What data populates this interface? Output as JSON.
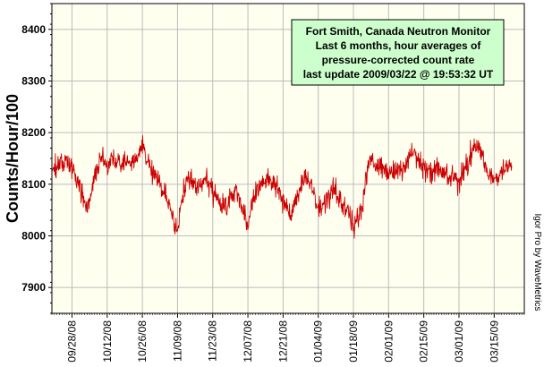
{
  "chart_data": {
    "type": "line",
    "title_lines": [
      "Fort Smith, Canada Neutron Monitor",
      "Last 6 months, hour averages of",
      "pressure-corrected count rate",
      "last update 2009/03/22 @ 19:53:32 UT"
    ],
    "ylabel": "Counts/Hour/100",
    "xlabel": "",
    "credit": "Igor Pro by WaveMetrics",
    "ylim": [
      7850,
      8450
    ],
    "yticks": [
      7900,
      8000,
      8100,
      8200,
      8300,
      8400
    ],
    "xlim": [
      "2008-09-20",
      "2009-03-27"
    ],
    "xticks": [
      {
        "label": "09/28/08",
        "date": "2008-09-28"
      },
      {
        "label": "10/12/08",
        "date": "2008-10-12"
      },
      {
        "label": "10/26/08",
        "date": "2008-10-26"
      },
      {
        "label": "11/09/08",
        "date": "2008-11-09"
      },
      {
        "label": "11/23/08",
        "date": "2008-11-23"
      },
      {
        "label": "12/07/08",
        "date": "2008-12-07"
      },
      {
        "label": "12/21/08",
        "date": "2008-12-21"
      },
      {
        "label": "01/04/09",
        "date": "2009-01-04"
      },
      {
        "label": "01/18/09",
        "date": "2009-01-18"
      },
      {
        "label": "02/01/09",
        "date": "2009-02-01"
      },
      {
        "label": "02/15/09",
        "date": "2009-02-15"
      },
      {
        "label": "03/01/09",
        "date": "2009-03-01"
      },
      {
        "label": "03/15/09",
        "date": "2009-03-15"
      }
    ],
    "grid": true,
    "legend_position": "top-right",
    "colors": {
      "series": "#cc0000",
      "plot_background": "#fffff0",
      "legend_background": "#ccffcc",
      "grid": "#bbbbbb"
    },
    "series": [
      {
        "noise": 32,
        "points": [
          [
            "2008-09-20",
            8135
          ],
          [
            "2008-09-23",
            8140
          ],
          [
            "2008-09-26",
            8145
          ],
          [
            "2008-09-29",
            8120
          ],
          [
            "2008-10-02",
            8085
          ],
          [
            "2008-10-04",
            8055
          ],
          [
            "2008-10-06",
            8095
          ],
          [
            "2008-10-08",
            8130
          ],
          [
            "2008-10-10",
            8150
          ],
          [
            "2008-10-12",
            8130
          ],
          [
            "2008-10-14",
            8150
          ],
          [
            "2008-10-17",
            8135
          ],
          [
            "2008-10-20",
            8140
          ],
          [
            "2008-10-23",
            8145
          ],
          [
            "2008-10-26",
            8175
          ],
          [
            "2008-10-29",
            8130
          ],
          [
            "2008-11-01",
            8105
          ],
          [
            "2008-11-04",
            8085
          ],
          [
            "2008-11-07",
            8040
          ],
          [
            "2008-11-09",
            8010
          ],
          [
            "2008-11-11",
            8085
          ],
          [
            "2008-11-14",
            8110
          ],
          [
            "2008-11-17",
            8095
          ],
          [
            "2008-11-20",
            8115
          ],
          [
            "2008-11-23",
            8085
          ],
          [
            "2008-11-26",
            8060
          ],
          [
            "2008-11-29",
            8065
          ],
          [
            "2008-12-02",
            8090
          ],
          [
            "2008-12-05",
            8045
          ],
          [
            "2008-12-07",
            8015
          ],
          [
            "2008-12-09",
            8075
          ],
          [
            "2008-12-12",
            8100
          ],
          [
            "2008-12-15",
            8110
          ],
          [
            "2008-12-18",
            8100
          ],
          [
            "2008-12-21",
            8065
          ],
          [
            "2008-12-24",
            8040
          ],
          [
            "2008-12-27",
            8080
          ],
          [
            "2008-12-30",
            8120
          ],
          [
            "2009-01-01",
            8105
          ],
          [
            "2009-01-04",
            8050
          ],
          [
            "2009-01-07",
            8065
          ],
          [
            "2009-01-10",
            8090
          ],
          [
            "2009-01-13",
            8065
          ],
          [
            "2009-01-16",
            8050
          ],
          [
            "2009-01-18",
            8020
          ],
          [
            "2009-01-21",
            8045
          ],
          [
            "2009-01-24",
            8145
          ],
          [
            "2009-01-27",
            8140
          ],
          [
            "2009-02-01",
            8120
          ],
          [
            "2009-02-04",
            8130
          ],
          [
            "2009-02-07",
            8125
          ],
          [
            "2009-02-10",
            8165
          ],
          [
            "2009-02-13",
            8145
          ],
          [
            "2009-02-15",
            8125
          ],
          [
            "2009-02-18",
            8120
          ],
          [
            "2009-02-21",
            8135
          ],
          [
            "2009-02-24",
            8120
          ],
          [
            "2009-02-27",
            8115
          ],
          [
            "2009-03-01",
            8105
          ],
          [
            "2009-03-04",
            8135
          ],
          [
            "2009-03-07",
            8175
          ],
          [
            "2009-03-10",
            8160
          ],
          [
            "2009-03-13",
            8120
          ],
          [
            "2009-03-15",
            8105
          ],
          [
            "2009-03-18",
            8125
          ],
          [
            "2009-03-22",
            8140
          ]
        ]
      }
    ]
  }
}
